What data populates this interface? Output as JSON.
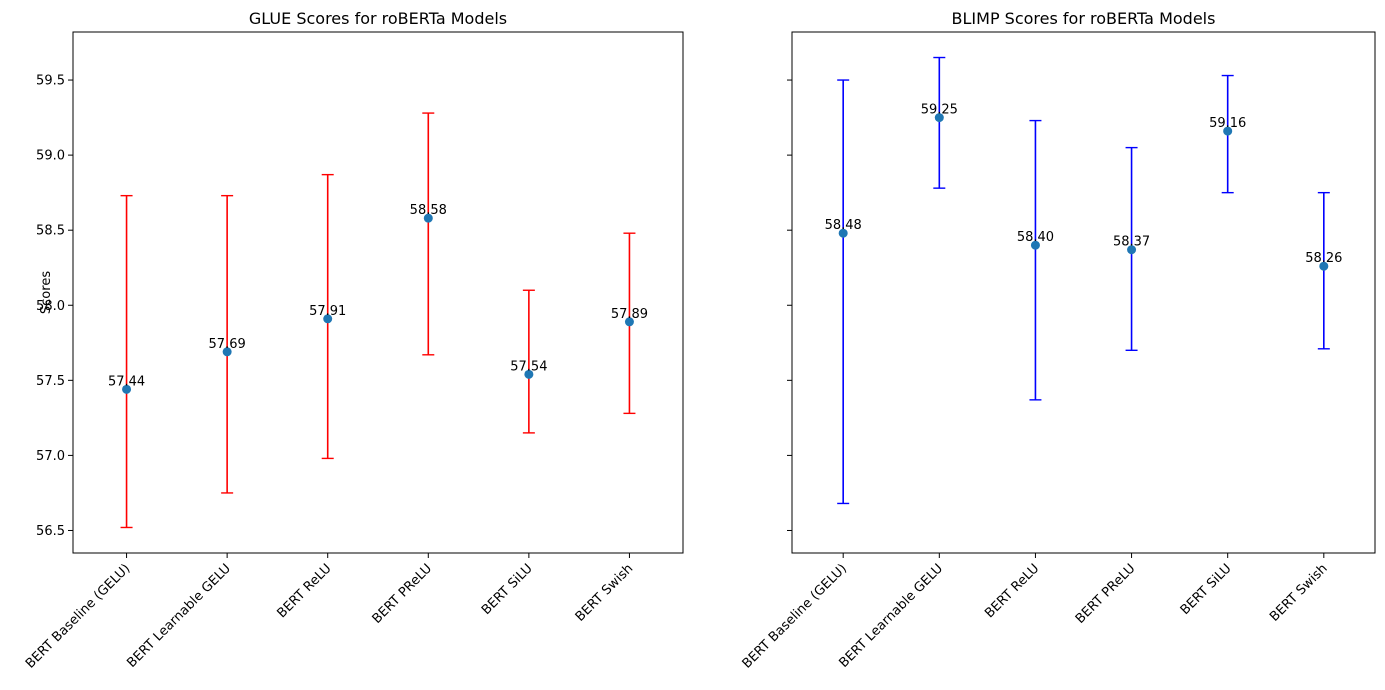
{
  "chart_data": [
    {
      "type": "scatter",
      "title": "GLUE Scores for roBERTa Models",
      "xlabel": "",
      "ylabel": "Scores",
      "categories": [
        "BERT Baseline (GELU)",
        "BERT Learnable GELU",
        "BERT ReLU",
        "BERT PReLU",
        "BERT SiLU",
        "BERT Swish"
      ],
      "values": [
        57.44,
        57.69,
        57.91,
        58.58,
        57.54,
        57.89
      ],
      "value_labels": [
        "57.44",
        "57.69",
        "57.91",
        "58.58",
        "57.54",
        "57.89"
      ],
      "error_low": [
        56.52,
        56.75,
        56.98,
        57.67,
        57.15,
        57.28
      ],
      "error_high": [
        58.73,
        58.73,
        58.87,
        59.28,
        58.1,
        58.48
      ],
      "yticks": [
        "56.5",
        "57.0",
        "57.5",
        "58.0",
        "58.5",
        "59.0",
        "59.5"
      ],
      "ylim": [
        56.35,
        59.82
      ],
      "grid": false,
      "error_color": "#ff0000",
      "marker_color": "#1f77b4"
    },
    {
      "type": "scatter",
      "title": "BLIMP Scores for roBERTa Models",
      "xlabel": "",
      "ylabel": "",
      "categories": [
        "BERT Baseline (GELU)",
        "BERT Learnable GELU",
        "BERT ReLU",
        "BERT PReLU",
        "BERT SiLU",
        "BERT Swish"
      ],
      "values": [
        58.48,
        59.25,
        58.4,
        58.37,
        59.16,
        58.26
      ],
      "value_labels": [
        "58.48",
        "59.25",
        "58.40",
        "58.37",
        "59.16",
        "58.26"
      ],
      "error_low": [
        56.68,
        58.78,
        57.37,
        57.7,
        58.75,
        57.71
      ],
      "error_high": [
        59.5,
        59.65,
        59.23,
        59.05,
        59.53,
        58.75
      ],
      "ylim": [
        56.35,
        59.82
      ],
      "shared_y": true,
      "grid": false,
      "error_color": "#0000ff",
      "marker_color": "#1f77b4"
    }
  ]
}
